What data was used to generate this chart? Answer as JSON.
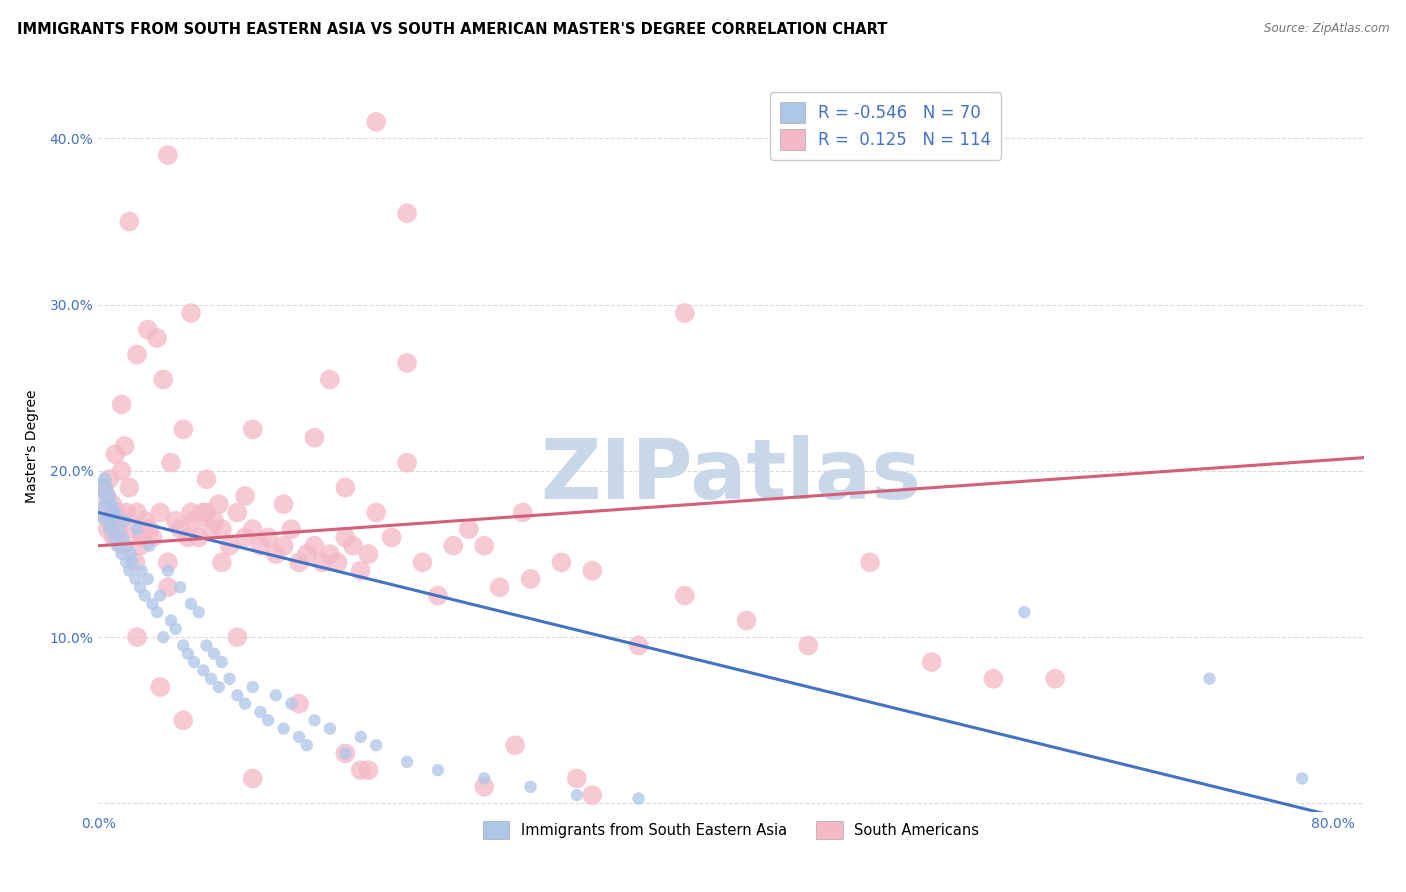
{
  "title": "IMMIGRANTS FROM SOUTH EASTERN ASIA VS SOUTH AMERICAN MASTER'S DEGREE CORRELATION CHART",
  "source": "Source: ZipAtlas.com",
  "ylabel": "Master's Degree",
  "xlim": [
    0.0,
    0.82
  ],
  "ylim": [
    -0.005,
    0.435
  ],
  "xticks": [
    0.0,
    0.1,
    0.2,
    0.3,
    0.4,
    0.5,
    0.6,
    0.7,
    0.8
  ],
  "yticks": [
    0.0,
    0.1,
    0.2,
    0.3,
    0.4
  ],
  "xtick_labels": [
    "0.0%",
    "",
    "",
    "",
    "",
    "",
    "",
    "",
    "80.0%"
  ],
  "ytick_labels": [
    "",
    "10.0%",
    "20.0%",
    "30.0%",
    "40.0%"
  ],
  "legend_R_blue": "-0.546",
  "legend_N_blue": "70",
  "legend_R_pink": "0.125",
  "legend_N_pink": "114",
  "blue_color": "#aec6e8",
  "pink_color": "#f4b8c8",
  "blue_line_color": "#4472c4",
  "pink_line_color": "#d45f7a",
  "grid_color": "#d8d8d8",
  "background_color": "#ffffff",
  "title_fontsize": 10.5,
  "axis_label_fontsize": 10,
  "tick_fontsize": 10,
  "watermark_text": "ZIPatlas",
  "watermark_color": "#c8d8e8",
  "watermark_fontsize": 60,
  "blue_line_x0": 0.0,
  "blue_line_y0": 0.175,
  "blue_line_x1": 0.82,
  "blue_line_y1": -0.012,
  "pink_line_x0": 0.0,
  "pink_line_y0": 0.155,
  "pink_line_x1": 0.82,
  "pink_line_y1": 0.208,
  "blue_pts_x": [
    0.003,
    0.004,
    0.005,
    0.006,
    0.007,
    0.008,
    0.009,
    0.01,
    0.011,
    0.012,
    0.013,
    0.015,
    0.016,
    0.017,
    0.018,
    0.019,
    0.02,
    0.021,
    0.022,
    0.024,
    0.025,
    0.027,
    0.028,
    0.03,
    0.032,
    0.033,
    0.035,
    0.038,
    0.04,
    0.042,
    0.045,
    0.047,
    0.05,
    0.053,
    0.055,
    0.058,
    0.06,
    0.062,
    0.065,
    0.068,
    0.07,
    0.073,
    0.075,
    0.078,
    0.08,
    0.085,
    0.09,
    0.095,
    0.1,
    0.105,
    0.11,
    0.115,
    0.12,
    0.125,
    0.13,
    0.135,
    0.14,
    0.15,
    0.16,
    0.17,
    0.18,
    0.2,
    0.22,
    0.25,
    0.28,
    0.31,
    0.35,
    0.6,
    0.72,
    0.78
  ],
  "blue_pts_y": [
    0.19,
    0.195,
    0.175,
    0.185,
    0.165,
    0.17,
    0.18,
    0.16,
    0.175,
    0.155,
    0.165,
    0.15,
    0.16,
    0.17,
    0.145,
    0.155,
    0.14,
    0.15,
    0.145,
    0.135,
    0.165,
    0.13,
    0.14,
    0.125,
    0.135,
    0.155,
    0.12,
    0.115,
    0.125,
    0.1,
    0.14,
    0.11,
    0.105,
    0.13,
    0.095,
    0.09,
    0.12,
    0.085,
    0.115,
    0.08,
    0.095,
    0.075,
    0.09,
    0.07,
    0.085,
    0.075,
    0.065,
    0.06,
    0.07,
    0.055,
    0.05,
    0.065,
    0.045,
    0.06,
    0.04,
    0.035,
    0.05,
    0.045,
    0.03,
    0.04,
    0.035,
    0.025,
    0.02,
    0.015,
    0.01,
    0.005,
    0.003,
    0.115,
    0.075,
    0.015
  ],
  "blue_pts_s": [
    200,
    100,
    350,
    150,
    80,
    80,
    80,
    80,
    80,
    80,
    80,
    80,
    80,
    80,
    80,
    80,
    80,
    80,
    80,
    80,
    80,
    80,
    80,
    80,
    80,
    80,
    80,
    80,
    80,
    80,
    80,
    80,
    80,
    80,
    80,
    80,
    80,
    80,
    80,
    80,
    80,
    80,
    80,
    80,
    80,
    80,
    80,
    80,
    80,
    80,
    80,
    80,
    80,
    80,
    80,
    80,
    80,
    80,
    80,
    80,
    80,
    80,
    80,
    80,
    80,
    80,
    80,
    80,
    80,
    80
  ],
  "pink_pts_x": [
    0.003,
    0.004,
    0.005,
    0.006,
    0.007,
    0.008,
    0.009,
    0.01,
    0.011,
    0.012,
    0.013,
    0.015,
    0.016,
    0.017,
    0.018,
    0.02,
    0.022,
    0.024,
    0.025,
    0.027,
    0.028,
    0.03,
    0.032,
    0.033,
    0.035,
    0.038,
    0.04,
    0.042,
    0.045,
    0.047,
    0.05,
    0.053,
    0.055,
    0.058,
    0.06,
    0.062,
    0.065,
    0.068,
    0.07,
    0.073,
    0.075,
    0.078,
    0.08,
    0.085,
    0.09,
    0.095,
    0.1,
    0.105,
    0.11,
    0.115,
    0.12,
    0.125,
    0.13,
    0.135,
    0.14,
    0.145,
    0.15,
    0.155,
    0.16,
    0.165,
    0.17,
    0.175,
    0.18,
    0.19,
    0.2,
    0.21,
    0.22,
    0.23,
    0.24,
    0.25,
    0.26,
    0.28,
    0.3,
    0.32,
    0.35,
    0.38,
    0.42,
    0.46,
    0.5,
    0.54,
    0.58,
    0.62,
    0.2,
    0.38,
    0.15,
    0.18,
    0.095,
    0.07,
    0.045,
    0.025,
    0.02,
    0.015,
    0.14,
    0.275,
    0.1,
    0.06,
    0.08,
    0.12,
    0.16,
    0.2,
    0.045,
    0.09,
    0.13,
    0.17,
    0.25,
    0.32,
    0.16,
    0.04,
    0.025,
    0.055,
    0.1,
    0.175,
    0.27,
    0.31
  ],
  "pink_pts_y": [
    0.19,
    0.175,
    0.185,
    0.165,
    0.195,
    0.17,
    0.18,
    0.16,
    0.21,
    0.175,
    0.165,
    0.2,
    0.155,
    0.215,
    0.175,
    0.19,
    0.165,
    0.145,
    0.175,
    0.155,
    0.16,
    0.17,
    0.285,
    0.165,
    0.16,
    0.28,
    0.175,
    0.255,
    0.145,
    0.205,
    0.17,
    0.165,
    0.225,
    0.16,
    0.175,
    0.17,
    0.16,
    0.175,
    0.175,
    0.165,
    0.17,
    0.18,
    0.165,
    0.155,
    0.175,
    0.16,
    0.165,
    0.155,
    0.16,
    0.15,
    0.155,
    0.165,
    0.145,
    0.15,
    0.155,
    0.145,
    0.15,
    0.145,
    0.16,
    0.155,
    0.14,
    0.15,
    0.175,
    0.16,
    0.265,
    0.145,
    0.125,
    0.155,
    0.165,
    0.155,
    0.13,
    0.135,
    0.145,
    0.14,
    0.095,
    0.125,
    0.11,
    0.095,
    0.145,
    0.085,
    0.075,
    0.075,
    0.355,
    0.295,
    0.255,
    0.41,
    0.185,
    0.195,
    0.39,
    0.27,
    0.35,
    0.24,
    0.22,
    0.175,
    0.225,
    0.295,
    0.145,
    0.18,
    0.19,
    0.205,
    0.13,
    0.1,
    0.06,
    0.02,
    0.01,
    0.005,
    0.03,
    0.07,
    0.1,
    0.05,
    0.015,
    0.02,
    0.035,
    0.015
  ]
}
